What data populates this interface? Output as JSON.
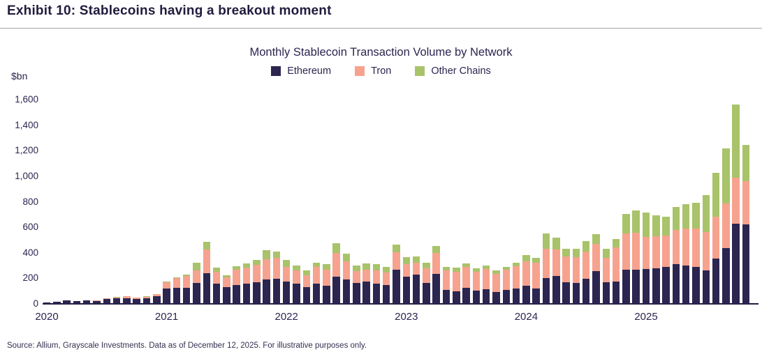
{
  "exhibit": {
    "title": "Exhibit 10: Stablecoins having a breakout moment"
  },
  "chart_data": {
    "type": "bar",
    "stacked": true,
    "title": "Monthly Stablecoin Transaction Volume by Network",
    "unit_label": "$bn",
    "ylabel": "$bn",
    "xlabel": "",
    "ylim": [
      0,
      1600
    ],
    "ytick_values": [
      0,
      200,
      400,
      600,
      800,
      1000,
      1200,
      1400,
      1600
    ],
    "ytick_labels": [
      "0",
      "200",
      "400",
      "600",
      "800",
      "1,000",
      "1,200",
      "1,400",
      "1,600"
    ],
    "grid": false,
    "legend_position": "top-center",
    "x_year_labels": [
      "2020",
      "2021",
      "2022",
      "2023",
      "2024",
      "2025"
    ],
    "months": [
      "2020-01",
      "2020-02",
      "2020-03",
      "2020-04",
      "2020-05",
      "2020-06",
      "2020-07",
      "2020-08",
      "2020-09",
      "2020-10",
      "2020-11",
      "2020-12",
      "2021-01",
      "2021-02",
      "2021-03",
      "2021-04",
      "2021-05",
      "2021-06",
      "2021-07",
      "2021-08",
      "2021-09",
      "2021-10",
      "2021-11",
      "2021-12",
      "2022-01",
      "2022-02",
      "2022-03",
      "2022-04",
      "2022-05",
      "2022-06",
      "2022-07",
      "2022-08",
      "2022-09",
      "2022-10",
      "2022-11",
      "2022-12",
      "2023-01",
      "2023-02",
      "2023-03",
      "2023-04",
      "2023-05",
      "2023-06",
      "2023-07",
      "2023-08",
      "2023-09",
      "2023-10",
      "2023-11",
      "2023-12",
      "2024-01",
      "2024-02",
      "2024-03",
      "2024-04",
      "2024-05",
      "2024-06",
      "2024-07",
      "2024-08",
      "2024-09",
      "2024-10",
      "2024-11",
      "2024-12",
      "2025-01",
      "2025-02",
      "2025-03",
      "2025-04",
      "2025-05",
      "2025-06",
      "2025-07",
      "2025-08",
      "2025-09",
      "2025-10",
      "2025-11"
    ],
    "series": [
      {
        "name": "Ethereum",
        "color": "#2b2550",
        "values": [
          11,
          15,
          25,
          20,
          25,
          23,
          36,
          42,
          46,
          38,
          46,
          60,
          120,
          127,
          124,
          164,
          242,
          156,
          133,
          147,
          160,
          169,
          193,
          196,
          175,
          156,
          133,
          160,
          142,
          215,
          193,
          164,
          175,
          156,
          146,
          269,
          215,
          229,
          164,
          237,
          109,
          97,
          124,
          102,
          115,
          91,
          109,
          120,
          140,
          120,
          200,
          218,
          169,
          164,
          196,
          257,
          169,
          175,
          269,
          268,
          275,
          278,
          291,
          310,
          300,
          288,
          260,
          357,
          437,
          630,
          620
        ]
      },
      {
        "name": "Tron",
        "color": "#f7a28e",
        "values": [
          0,
          1,
          2,
          2,
          2,
          2,
          6,
          9,
          13,
          9,
          11,
          16,
          50,
          75,
          93,
          96,
          182,
          95,
          73,
          118,
          122,
          136,
          158,
          164,
          113,
          104,
          91,
          131,
          127,
          182,
          140,
          91,
          95,
          104,
          102,
          137,
          95,
          91,
          115,
          160,
          151,
          155,
          164,
          149,
          158,
          146,
          157,
          177,
          195,
          204,
          229,
          206,
          200,
          202,
          215,
          213,
          191,
          268,
          282,
          287,
          249,
          249,
          242,
          270,
          288,
          300,
          304,
          326,
          351,
          360,
          340
        ]
      },
      {
        "name": "Other Chains",
        "color": "#a8c369",
        "values": [
          0,
          0,
          0,
          0,
          0,
          0,
          0,
          1,
          1,
          1,
          1,
          2,
          3,
          5,
          11,
          64,
          60,
          33,
          16,
          31,
          36,
          40,
          71,
          49,
          55,
          42,
          36,
          33,
          40,
          76,
          58,
          47,
          45,
          49,
          44,
          60,
          55,
          49,
          45,
          55,
          31,
          33,
          31,
          27,
          27,
          24,
          25,
          27,
          45,
          36,
          122,
          96,
          61,
          64,
          80,
          78,
          73,
          63,
          155,
          175,
          191,
          169,
          151,
          181,
          195,
          202,
          288,
          342,
          431,
          570,
          283
        ]
      }
    ]
  },
  "footer": {
    "source": "Source: Allium, Grayscale Investments. Data as of December 12, 2025. For illustrative purposes only."
  }
}
